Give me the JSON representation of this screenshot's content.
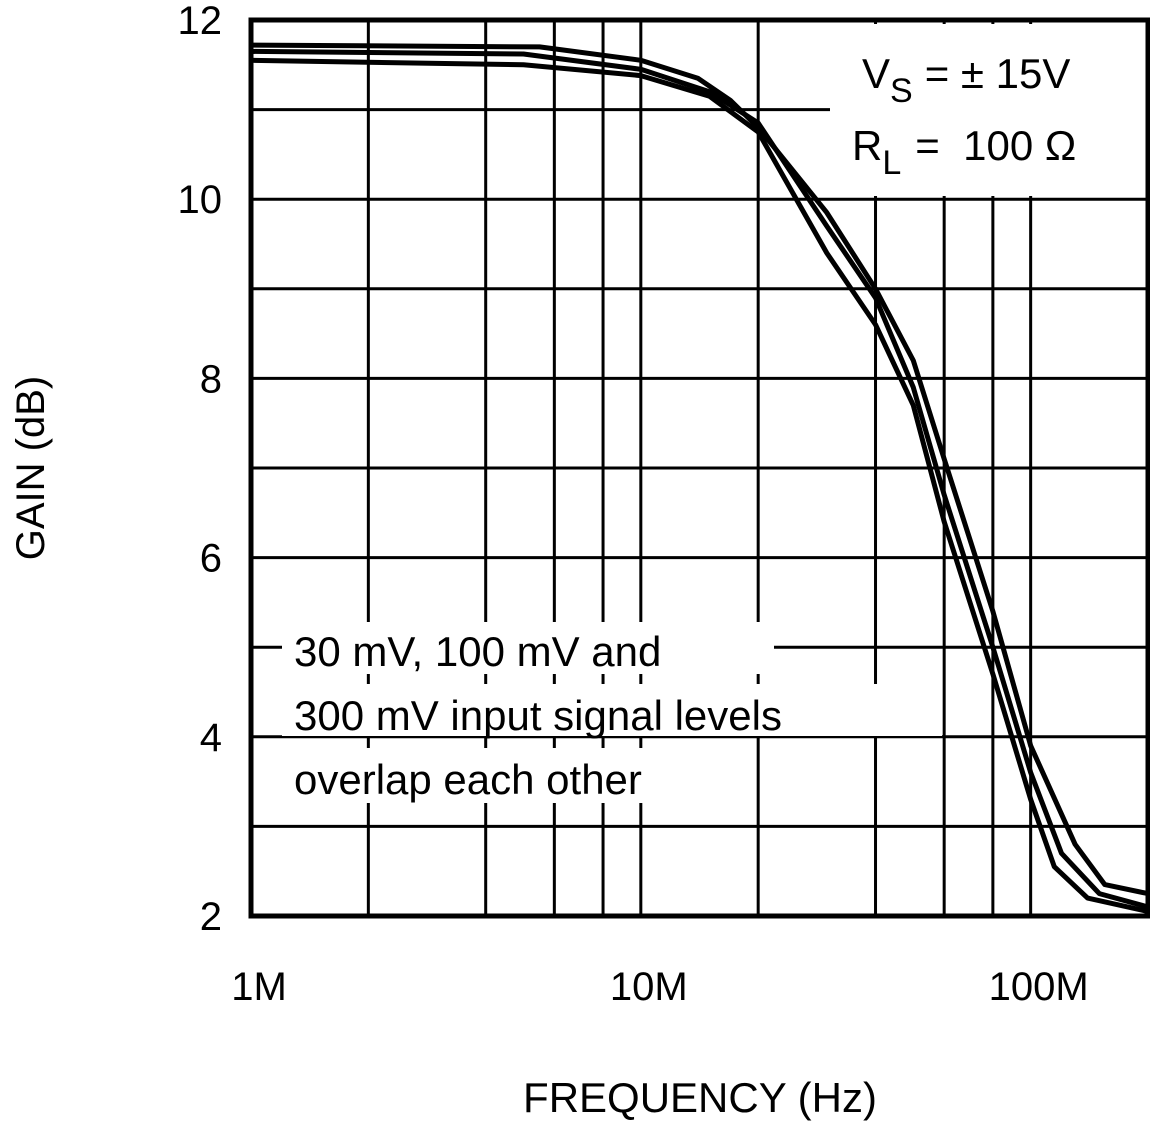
{
  "chart_data": {
    "type": "line",
    "title": "",
    "xlabel": "FREQUENCY (Hz)",
    "ylabel": "GAIN (dB)",
    "x_scale": "log",
    "xlim": [
      1000000,
      200000000
    ],
    "ylim": [
      2,
      12
    ],
    "grid": true,
    "x_ticks": [
      {
        "value": 1000000,
        "label": "1M"
      },
      {
        "value": 10000000,
        "label": "10M"
      },
      {
        "value": 100000000,
        "label": "100M"
      }
    ],
    "x_gridlines": [
      2000000,
      4000000,
      6000000,
      8000000,
      10000000,
      20000000,
      40000000,
      60000000,
      80000000,
      100000000
    ],
    "y_ticks": [
      {
        "value": 2,
        "label": "2"
      },
      {
        "value": 4,
        "label": "4"
      },
      {
        "value": 6,
        "label": "6"
      },
      {
        "value": 8,
        "label": "8"
      },
      {
        "value": 10,
        "label": "10"
      },
      {
        "value": 12,
        "label": "12"
      }
    ],
    "y_gridlines": [
      3,
      4,
      5,
      6,
      7,
      8,
      9,
      10,
      11
    ],
    "line_color": "#000000",
    "series": [
      {
        "points": [
          [
            1000000,
            11.72
          ],
          [
            5500000,
            11.7
          ],
          [
            10000000,
            11.55
          ],
          [
            14000000,
            11.35
          ],
          [
            17000000,
            11.1
          ],
          [
            20000000,
            10.8
          ],
          [
            30000000,
            9.85
          ],
          [
            40000000,
            9.0
          ],
          [
            50000000,
            8.2
          ],
          [
            60000000,
            7.1
          ],
          [
            80000000,
            5.4
          ],
          [
            100000000,
            3.9
          ],
          [
            130000000,
            2.8
          ],
          [
            155000000,
            2.35
          ],
          [
            200000000,
            2.25
          ]
        ]
      },
      {
        "points": [
          [
            1000000,
            11.65
          ],
          [
            5000000,
            11.62
          ],
          [
            10000000,
            11.45
          ],
          [
            15000000,
            11.2
          ],
          [
            20000000,
            10.85
          ],
          [
            30000000,
            9.7
          ],
          [
            40000000,
            8.9
          ],
          [
            50000000,
            7.9
          ],
          [
            60000000,
            6.7
          ],
          [
            80000000,
            5.0
          ],
          [
            100000000,
            3.6
          ],
          [
            120000000,
            2.7
          ],
          [
            150000000,
            2.25
          ],
          [
            200000000,
            2.1
          ]
        ]
      },
      {
        "points": [
          [
            1000000,
            11.55
          ],
          [
            5000000,
            11.5
          ],
          [
            10000000,
            11.38
          ],
          [
            15000000,
            11.15
          ],
          [
            20000000,
            10.75
          ],
          [
            30000000,
            9.4
          ],
          [
            40000000,
            8.6
          ],
          [
            50000000,
            7.7
          ],
          [
            60000000,
            6.4
          ],
          [
            80000000,
            4.7
          ],
          [
            100000000,
            3.3
          ],
          [
            115000000,
            2.55
          ],
          [
            140000000,
            2.2
          ],
          [
            200000000,
            2.05
          ]
        ]
      }
    ],
    "annotations": {
      "conditions": {
        "vs_label": "V",
        "vs_sub": "S",
        "vs_value": "= ± 15V",
        "rl_label": "R",
        "rl_sub": "L",
        "rl_value": "=  100 Ω"
      },
      "note_lines": [
        "30 mV, 100 mV and",
        "300 mV input signal levels",
        "overlap each other"
      ]
    }
  }
}
